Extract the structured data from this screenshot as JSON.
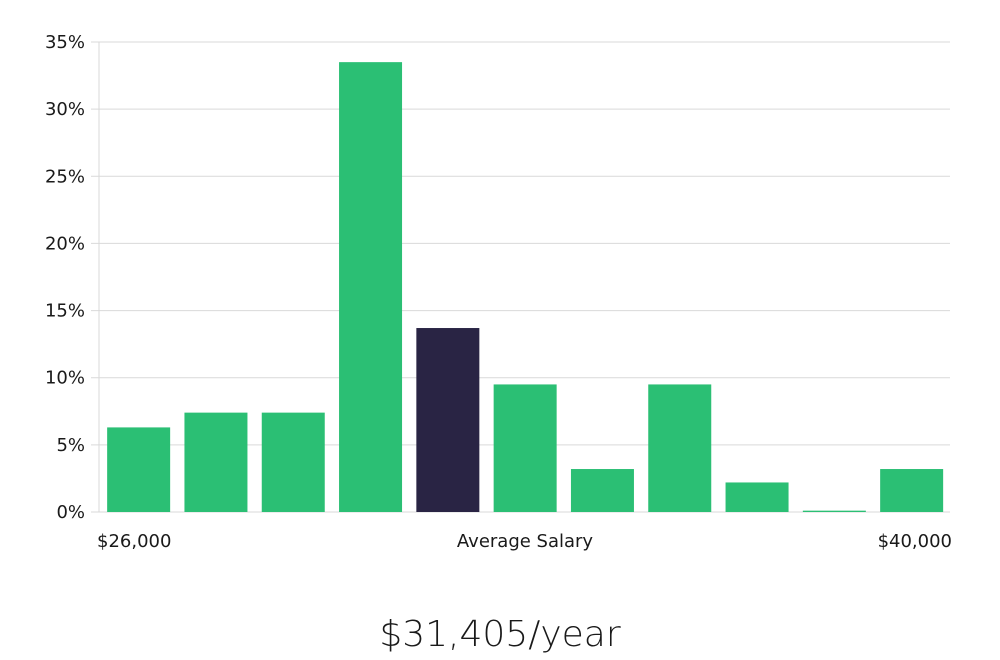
{
  "chart_data": {
    "type": "bar",
    "title": "",
    "xlabel": "Average Salary",
    "ylabel": "",
    "x_range_labels": {
      "min": "$26,000",
      "max": "$40,000"
    },
    "ylim": [
      0,
      35
    ],
    "y_ticks": [
      {
        "value": 0,
        "label": "0%"
      },
      {
        "value": 5,
        "label": "5%"
      },
      {
        "value": 10,
        "label": "10%"
      },
      {
        "value": 15,
        "label": "15%"
      },
      {
        "value": 20,
        "label": "20%"
      },
      {
        "value": 25,
        "label": "25%"
      },
      {
        "value": 30,
        "label": "30%"
      },
      {
        "value": 35,
        "label": "35%"
      }
    ],
    "grid": true,
    "values": [
      6.3,
      7.4,
      7.4,
      33.5,
      13.7,
      9.5,
      3.2,
      9.5,
      2.2,
      0.1,
      3.2
    ],
    "highlight_index": 4,
    "colors": {
      "bar": "#2bbf74",
      "highlight": "#292444"
    }
  },
  "summary": {
    "average_salary": "$31,405/year"
  }
}
